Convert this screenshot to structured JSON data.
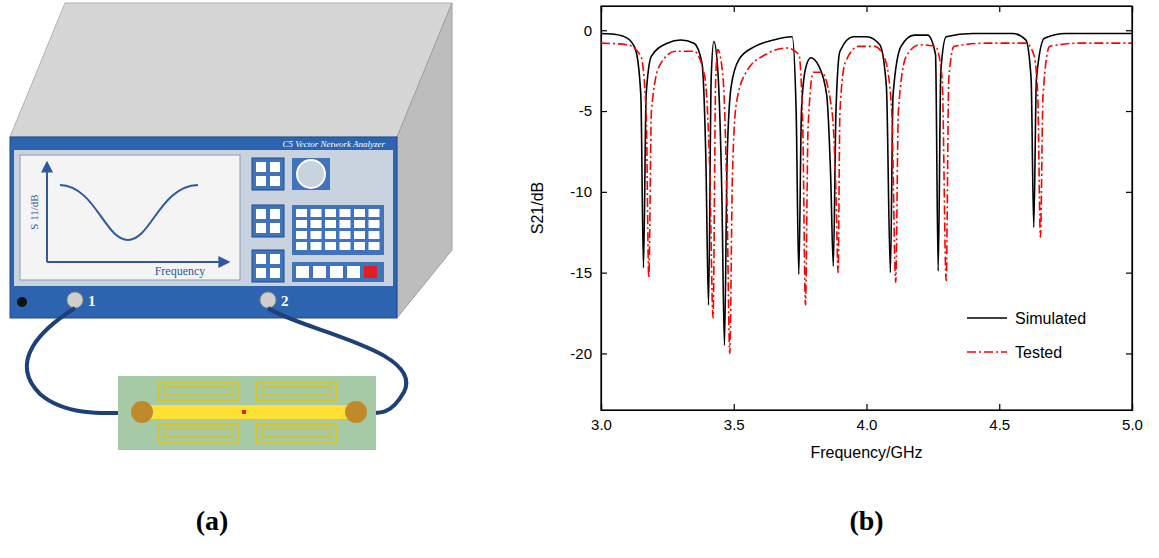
{
  "chart_data": {
    "type": "line",
    "panel_label": "(b)",
    "x_label": "Frequency/GHz",
    "y_label": "S21/dB",
    "xlim": [
      3,
      5
    ],
    "ylim": [
      -23.5,
      1.5
    ],
    "xticks": [
      {
        "value": 3,
        "label": "3.0"
      },
      {
        "value": 3.5,
        "label": "3.5"
      },
      {
        "value": 4,
        "label": "4.0"
      },
      {
        "value": 4.5,
        "label": "4.5"
      },
      {
        "value": 5,
        "label": "5.0"
      }
    ],
    "yticks": [
      -20,
      -15,
      -10,
      -5,
      0
    ],
    "legend": "lower right",
    "series": [
      {
        "name": "Simulated",
        "color": "#000000",
        "line_style": "solid",
        "x": [
          3.0,
          3.05,
          3.1,
          3.13,
          3.15,
          3.16,
          3.17,
          3.19,
          3.25,
          3.3,
          3.35,
          3.38,
          3.395,
          3.405,
          3.415,
          3.425,
          3.44,
          3.455,
          3.465,
          3.475,
          3.49,
          3.52,
          3.58,
          3.65,
          3.72,
          3.735,
          3.745,
          3.755,
          3.77,
          3.79,
          3.82,
          3.85,
          3.865,
          3.875,
          3.885,
          3.9,
          3.95,
          4.0,
          4.05,
          4.075,
          4.09,
          4.1,
          4.13,
          4.18,
          4.23,
          4.26,
          4.27,
          4.28,
          4.3,
          4.4,
          4.55,
          4.6,
          4.62,
          4.63,
          4.64,
          4.67,
          4.75,
          5.0
        ],
        "values": [
          -0.2,
          -0.25,
          -0.5,
          -1.2,
          -4,
          -14.7,
          -4,
          -1.6,
          -0.8,
          -0.6,
          -0.8,
          -2,
          -8,
          -17,
          -3,
          -0.7,
          -2.5,
          -10,
          -19.5,
          -8,
          -3.5,
          -1.8,
          -1,
          -0.6,
          -0.4,
          -5,
          -15.1,
          -5,
          -2.4,
          -1.7,
          -2.2,
          -4,
          -9,
          -14.6,
          -5,
          -1.3,
          -0.4,
          -0.4,
          -0.9,
          -3.5,
          -15,
          -4,
          -1,
          -0.3,
          -0.3,
          -1.5,
          -14.9,
          -2.5,
          -0.4,
          -0.2,
          -0.2,
          -0.6,
          -3,
          -12.2,
          -3,
          -0.5,
          -0.2,
          -0.2
        ]
      },
      {
        "name": "Tested",
        "color": "#ff0000",
        "line_style": "dashdot",
        "x": [
          3.0,
          3.1,
          3.15,
          3.17,
          3.18,
          3.19,
          3.22,
          3.28,
          3.35,
          3.39,
          3.41,
          3.422,
          3.432,
          3.44,
          3.46,
          3.475,
          3.485,
          3.495,
          3.51,
          3.55,
          3.62,
          3.7,
          3.745,
          3.76,
          3.77,
          3.78,
          3.8,
          3.83,
          3.87,
          3.885,
          3.893,
          3.9,
          3.92,
          3.97,
          4.03,
          4.07,
          4.095,
          4.11,
          4.12,
          4.15,
          4.2,
          4.26,
          4.285,
          4.3,
          4.31,
          4.33,
          4.45,
          4.6,
          4.63,
          4.645,
          4.655,
          4.665,
          4.69,
          4.8,
          5.0
        ],
        "values": [
          -0.8,
          -0.9,
          -1.6,
          -5,
          -15.3,
          -5,
          -2.2,
          -1.3,
          -1.3,
          -2.8,
          -9,
          -17.8,
          -3,
          -1.2,
          -3,
          -11,
          -20,
          -9,
          -4.5,
          -2.5,
          -1.5,
          -1.1,
          -1.5,
          -6,
          -17,
          -6,
          -2.6,
          -2.6,
          -5,
          -10,
          -15,
          -5,
          -2,
          -1,
          -1,
          -1.8,
          -5,
          -15.6,
          -5,
          -1.6,
          -0.9,
          -1,
          -3,
          -15.5,
          -3,
          -1,
          -0.8,
          -0.8,
          -1.5,
          -4,
          -12.8,
          -4,
          -1,
          -0.8,
          -0.8
        ]
      }
    ]
  },
  "diagram": {
    "label": "(a)",
    "instrument": "C5 Vector Network Analyzer",
    "screen": {
      "y_label": "S 11/dB",
      "x_label": "Frequency"
    },
    "ports": [
      "1",
      "2"
    ]
  }
}
